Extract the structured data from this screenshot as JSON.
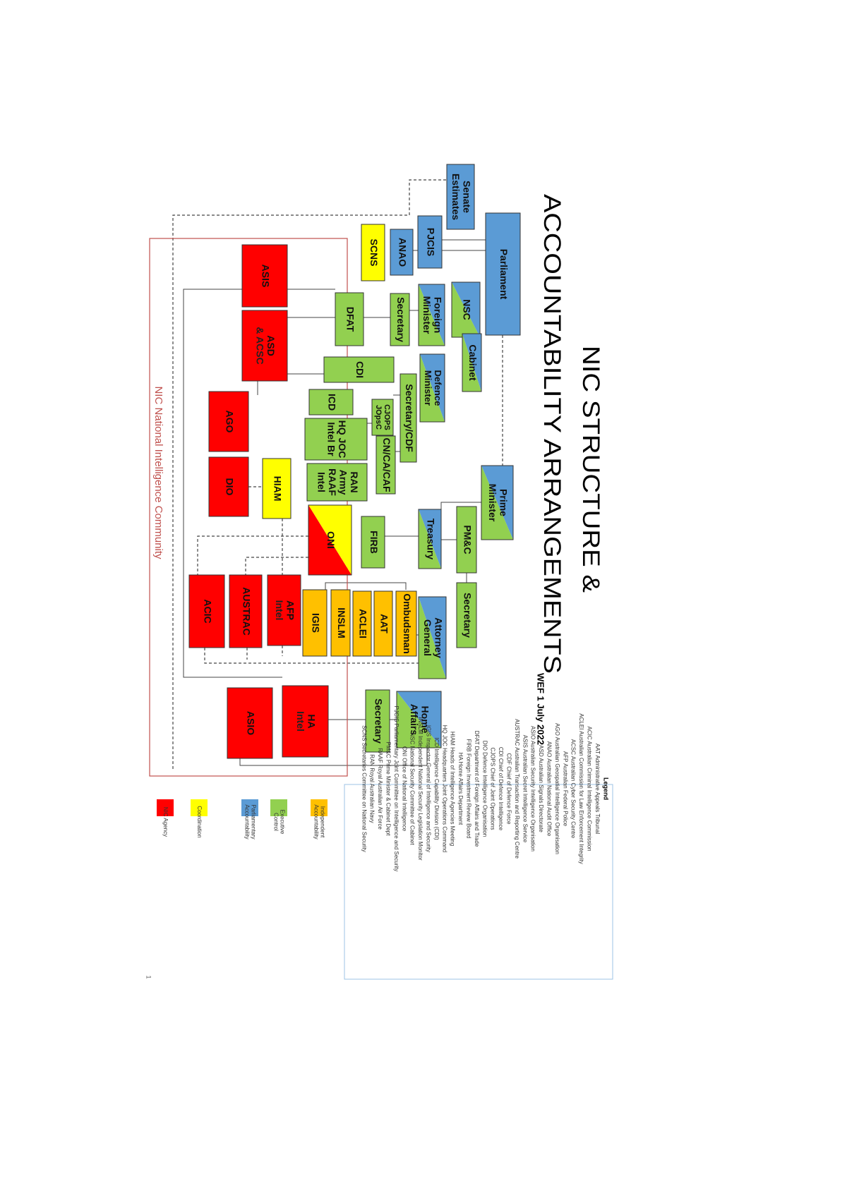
{
  "title": [
    "NIC STRUCTURE &",
    "ACCOUNTABILITY ARRANGEMENTS"
  ],
  "subtitle": "WEF 1 July 2022",
  "nic_label": "NIC National Intelligence Community",
  "page_number": "1",
  "nodes": [
    {
      "label": [
        "Senate",
        "Estimates"
      ],
      "fill": "blue"
    },
    {
      "label": [
        "Parliament"
      ],
      "fill": "blue"
    },
    {
      "label": [
        "PJCIS"
      ],
      "fill": "blue"
    },
    {
      "label": [
        "ANAO"
      ],
      "fill": "blue"
    },
    {
      "label": [
        "SCNS"
      ],
      "fill": "yellow"
    },
    {
      "label": [
        "NSC"
      ],
      "fill": "blue-green"
    },
    {
      "label": [
        "Foreign",
        "Minister"
      ],
      "fill": "blue-green"
    },
    {
      "label": [
        "Secretary"
      ],
      "fill": "green"
    },
    {
      "label": [
        "DFAT"
      ],
      "fill": "green"
    },
    {
      "label": [
        "Cabinet"
      ],
      "fill": "blue-green"
    },
    {
      "label": [
        "Defence",
        "Minister"
      ],
      "fill": "blue-green"
    },
    {
      "label": [
        "CDI"
      ],
      "fill": "green"
    },
    {
      "label": [
        "Secretary/CDF"
      ],
      "fill": "green"
    },
    {
      "label": [
        "ICD"
      ],
      "fill": "green"
    },
    {
      "label": [
        "CJOPS",
        "JOpsC"
      ],
      "fill": "green"
    },
    {
      "label": [
        "HQ JOC",
        "Intel Br"
      ],
      "fill": "green"
    },
    {
      "label": [
        "CN/CA/CAF"
      ],
      "fill": "green"
    },
    {
      "label": [
        "RAN",
        "Army",
        "RAAF",
        "Intel"
      ],
      "fill": "green"
    },
    {
      "label": [
        "Prime",
        "Minister"
      ],
      "fill": "blue-green"
    },
    {
      "label": [
        "PM&C"
      ],
      "fill": "green"
    },
    {
      "label": [
        "Treasury"
      ],
      "fill": "blue-green"
    },
    {
      "label": [
        "FIRB"
      ],
      "fill": "green"
    },
    {
      "label": [
        "ONI"
      ],
      "fill": "yellow-red"
    },
    {
      "label": [
        "HIAM"
      ],
      "fill": "yellow"
    },
    {
      "label": [
        "ASIS"
      ],
      "fill": "red"
    },
    {
      "label": [
        "ASD",
        "& ACSC"
      ],
      "fill": "red"
    },
    {
      "label": [
        "AGO"
      ],
      "fill": "red"
    },
    {
      "label": [
        "DIO"
      ],
      "fill": "red"
    },
    {
      "label": [
        "Secretary"
      ],
      "fill": "green"
    },
    {
      "label": [
        "Attorney",
        "General"
      ],
      "fill": "blue-green"
    },
    {
      "label": [
        "Ombudsman"
      ],
      "fill": "orange"
    },
    {
      "label": [
        "AAT"
      ],
      "fill": "orange"
    },
    {
      "label": [
        "ACLEI"
      ],
      "fill": "orange"
    },
    {
      "label": [
        "INSLM"
      ],
      "fill": "orange"
    },
    {
      "label": [
        "IGIS"
      ],
      "fill": "orange"
    },
    {
      "label": [
        "AFP",
        "Intel"
      ],
      "fill": "red"
    },
    {
      "label": [
        "AUSTRAC"
      ],
      "fill": "red"
    },
    {
      "label": [
        "ACIC"
      ],
      "fill": "red"
    },
    {
      "label": [
        "Home",
        "Affairs"
      ],
      "fill": "blue-green"
    },
    {
      "label": [
        "Secretary"
      ],
      "fill": "green"
    },
    {
      "label": [
        "HA",
        "Intel"
      ],
      "fill": "red"
    },
    {
      "label": [
        "ASIO"
      ],
      "fill": "red"
    }
  ],
  "legend": {
    "title": "Legend",
    "items": [
      "AAT Administrative Appeals Tribunal",
      "ACIC Australian Criminal Intelligence Commission",
      "ACLEI Australian Commission for Law Enforcement Integrity",
      "ACSC Australian Cyber Security Centre",
      "AFP Australian Federal Police",
      "AGO Australian Geospatial Intelligence Organisation",
      "ANAO Australian National Audit Office",
      "ASD Australian Signals Directorate",
      "ASIO Australian Security Intelligence Organisation",
      "ASIS Australian Secret Intelligence Service",
      "AUSTRAC Australian Transaction and Reporting Centre",
      "CDF Chief of Defence Force",
      "CDI Chief of Defence Intelligence",
      "CJOPS Chief of Joint Operations",
      "DIO Defence Intelligence Organisation",
      "DFAT Department of Foreign Affairs and Trade",
      "FIRB Foreign Investment Review Board",
      "HA Home Affairs Department",
      "HIAM Heads of Intelligence Agencies Meeting",
      "HQ JOC Headquarters Joint Operations Command",
      "ICD Intelligence Capability Division (CDI)",
      "IGIS Inspector General of Intelligence and Security",
      "INSLM Independent National Security Legislation Monitor",
      "NSC National Security Committee of Cabinet",
      "ONI Office of National Intelligence",
      "PJCIS Parliamentary Joint Committee on Intelligence and Security",
      "PM&C Prime Minister & Cabinet Dept",
      "RAAF Royal Australian Air Force",
      "RAN Royal Australian Navy",
      "SCNS Secretaries Committee on National Security"
    ]
  },
  "key": [
    {
      "label": [
        "Independent",
        "Accountability"
      ],
      "fill": "orange"
    },
    {
      "label": [
        "Executive",
        "Control"
      ],
      "fill": "green"
    },
    {
      "label": [
        "Parliamentary",
        "Accountability"
      ],
      "fill": "blue"
    },
    {
      "label": [
        "Coordination"
      ],
      "fill": "yellow"
    },
    {
      "label": [
        "NIC Agency"
      ],
      "fill": "red"
    }
  ]
}
